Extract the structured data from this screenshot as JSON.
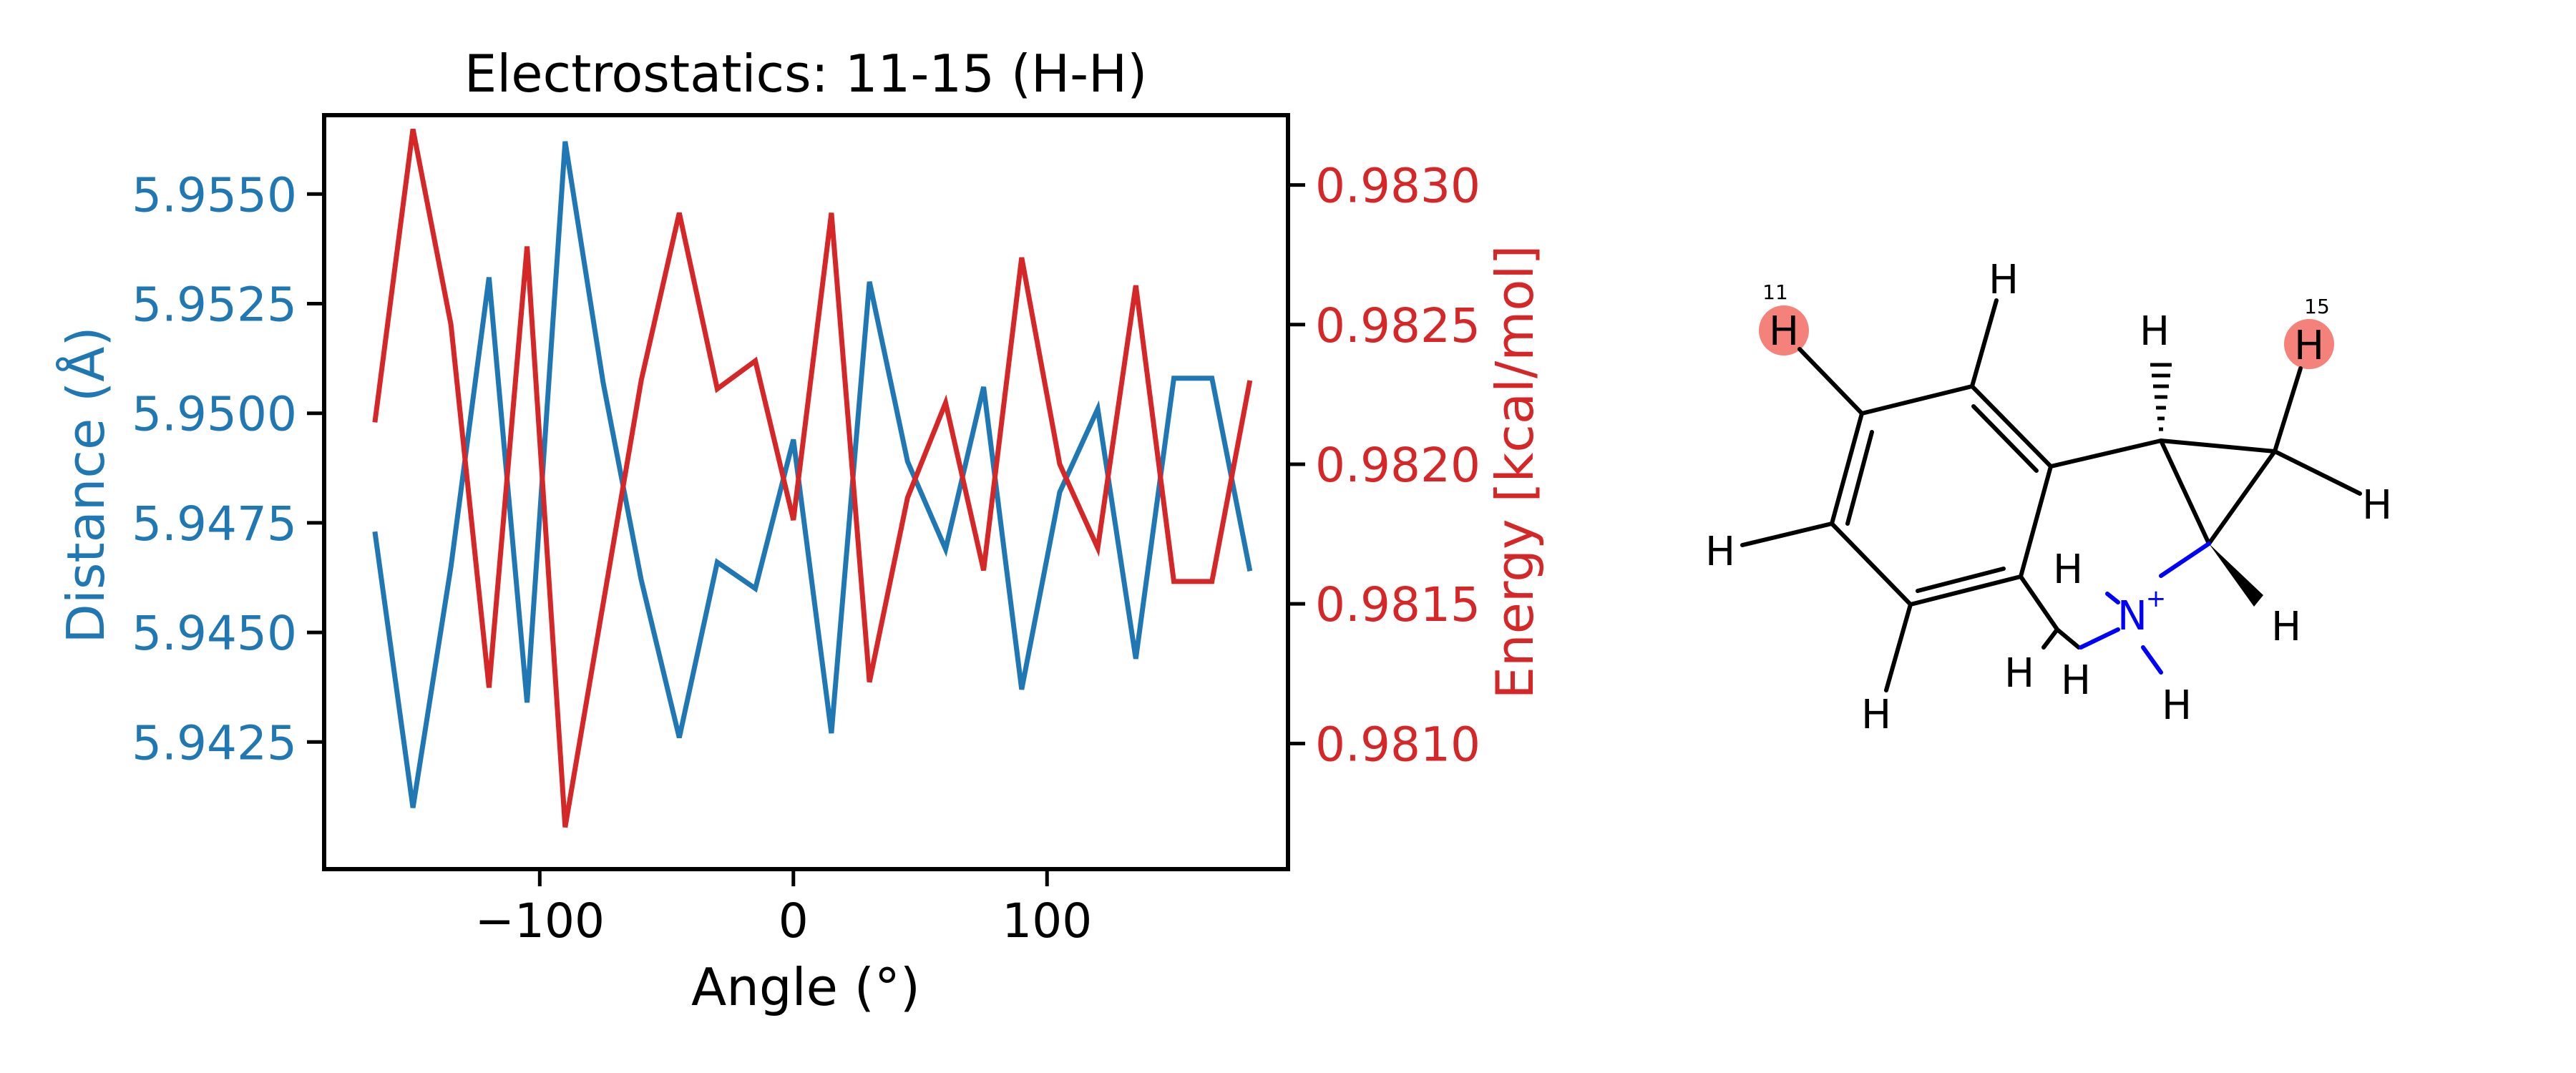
{
  "chart_data": {
    "type": "line",
    "title": "Electrostatics: 11-15 (H-H)",
    "xlabel": "Angle (°)",
    "ylabel_left": "Distance (Å)",
    "ylabel_right": "Energy [kcal/mol]",
    "xlim": [
      -185,
      195
    ],
    "ylim_left": [
      5.9396,
      5.9568
    ],
    "ylim_right": [
      0.98055,
      0.98325
    ],
    "x_ticks": [
      -100,
      0,
      100
    ],
    "x_tick_labels": [
      "−100",
      "0",
      "100"
    ],
    "y_left_ticks": [
      5.9425,
      5.945,
      5.9475,
      5.95,
      5.9525,
      5.955
    ],
    "y_left_tick_labels": [
      "5.9425",
      "5.9450",
      "5.9475",
      "5.9500",
      "5.9525",
      "5.9550"
    ],
    "y_right_ticks": [
      0.981,
      0.9815,
      0.982,
      0.9825,
      0.983
    ],
    "y_right_tick_labels": [
      "0.9810",
      "0.9815",
      "0.9820",
      "0.9825",
      "0.9830"
    ],
    "grid": false,
    "x": [
      -165,
      -150,
      -135,
      -120,
      -105,
      -90,
      -75,
      -60,
      -45,
      -30,
      -15,
      0,
      15,
      30,
      45,
      60,
      75,
      90,
      105,
      120,
      135,
      150,
      165,
      180
    ],
    "series": [
      {
        "axis": "left",
        "color": "#1f77b4",
        "values": [
          5.9473,
          5.941,
          5.9465,
          5.9531,
          5.9434,
          5.9562,
          5.9507,
          5.9462,
          5.9426,
          5.9466,
          5.946,
          5.9494,
          5.9427,
          5.953,
          5.9489,
          5.9469,
          5.9506,
          5.9437,
          5.9482,
          5.9501,
          5.9444,
          5.9508,
          5.9508,
          5.9464
        ]
      },
      {
        "axis": "right",
        "color": "#d62728",
        "values": [
          0.98215,
          0.9832,
          0.9825,
          0.9812,
          0.98278,
          0.9807,
          0.9815,
          0.9823,
          0.9829,
          0.98227,
          0.98237,
          0.9818,
          0.9829,
          0.98122,
          0.98188,
          0.98222,
          0.98162,
          0.98274,
          0.982,
          0.9817,
          0.98264,
          0.98158,
          0.98158,
          0.9823
        ]
      }
    ]
  },
  "molecule": {
    "atom_labels": {
      "h_highlight_11": "H",
      "h_highlight_15": "H",
      "h_top_ring": "H",
      "h_left": "H",
      "h_bottom": "H",
      "h_wedge_top": "H",
      "h_right": "H",
      "h_wedge_bottom": "H",
      "h_n_left": "H",
      "h_n_lower_left": "H",
      "h_n_lower": "H",
      "h_n_bottom": "H",
      "nitrogen": "N",
      "n_charge": "+"
    },
    "atom_indices": {
      "first": "11",
      "second": "15"
    },
    "colors": {
      "bond": "#000000",
      "nitrogen": "#0000ff",
      "highlight": "#f4827b"
    }
  }
}
